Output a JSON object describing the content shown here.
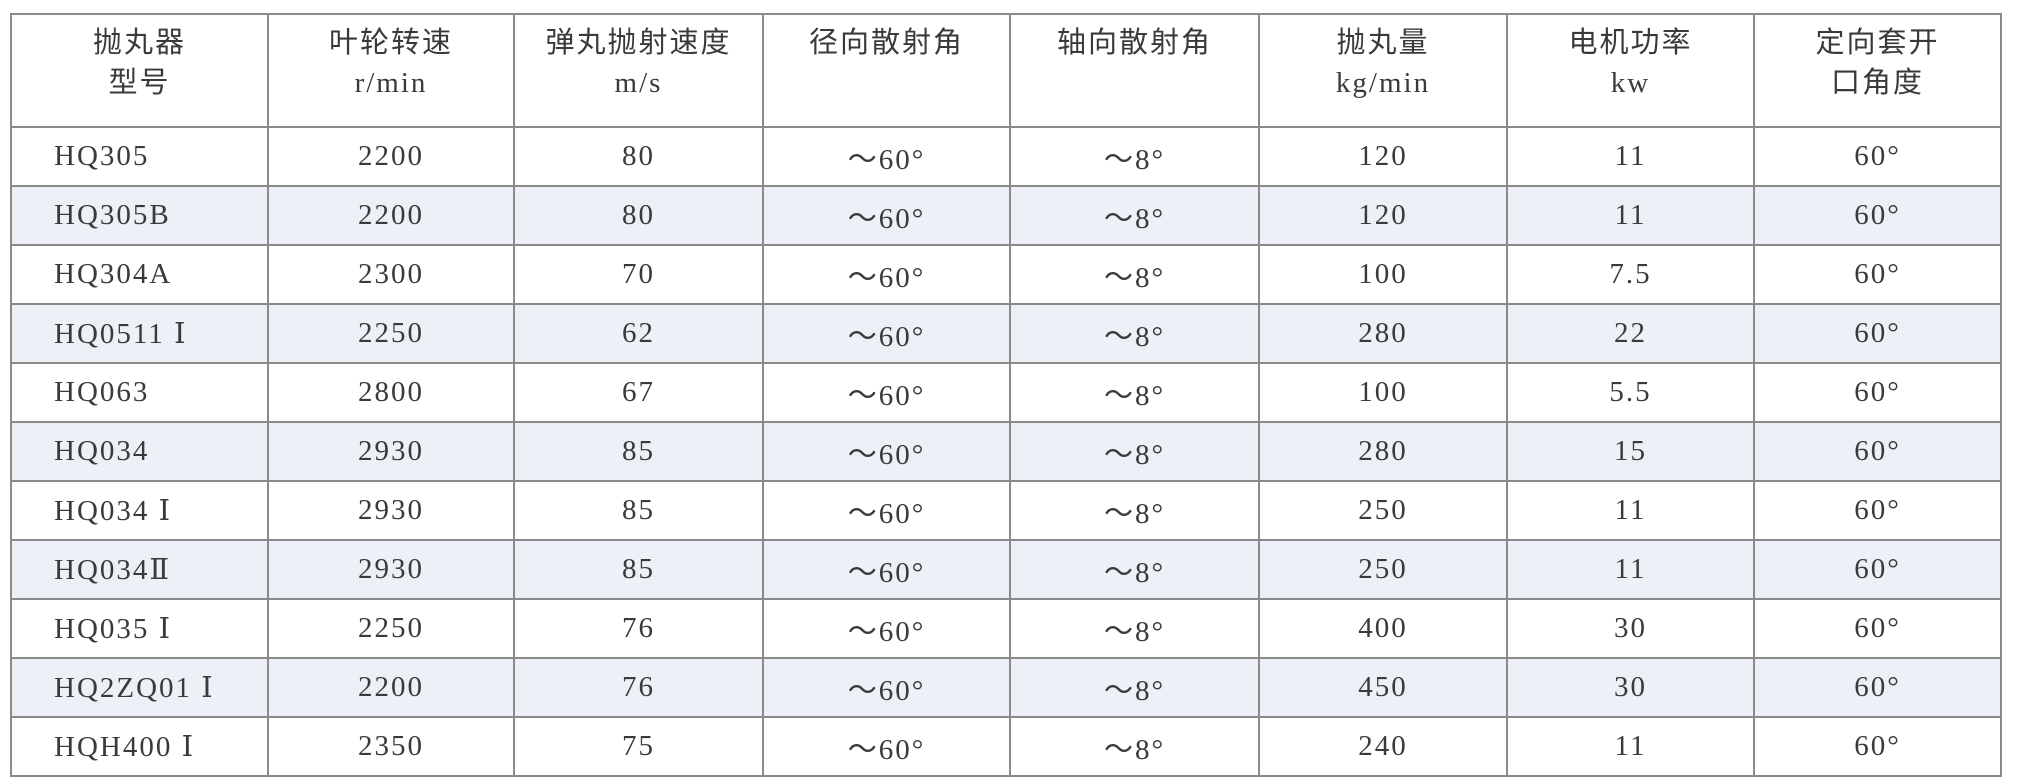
{
  "table": {
    "header": [
      [
        "抛丸器",
        "型号"
      ],
      [
        "叶轮转速",
        "r/min"
      ],
      [
        "弹丸抛射速度",
        "m/s"
      ],
      [
        "径向散射角"
      ],
      [
        "轴向散射角"
      ],
      [
        "抛丸量",
        "kg/min"
      ],
      [
        "电机功率",
        "kw"
      ],
      [
        "定向套开",
        "口角度"
      ]
    ],
    "rows": [
      [
        "HQ305",
        "2200",
        "80",
        "～60°",
        "～8°",
        "120",
        "11",
        "60°"
      ],
      [
        "HQ305B",
        "2200",
        "80",
        "～60°",
        "～8°",
        "120",
        "11",
        "60°"
      ],
      [
        "HQ304A",
        "2300",
        "70",
        "～60°",
        "～8°",
        "100",
        "7.5",
        "60°"
      ],
      [
        "HQ0511 Ⅰ",
        "2250",
        "62",
        "～60°",
        "～8°",
        "280",
        "22",
        "60°"
      ],
      [
        "HQ063",
        "2800",
        "67",
        "～60°",
        "～8°",
        "100",
        "5.5",
        "60°"
      ],
      [
        "HQ034",
        "2930",
        "85",
        "～60°",
        "～8°",
        "280",
        "15",
        "60°"
      ],
      [
        "HQ034 Ⅰ",
        "2930",
        "85",
        "～60°",
        "～8°",
        "250",
        "11",
        "60°"
      ],
      [
        "HQ034Ⅱ",
        "2930",
        "85",
        "～60°",
        "～8°",
        "250",
        "11",
        "60°"
      ],
      [
        "HQ035 Ⅰ",
        "2250",
        "76",
        "～60°",
        "～8°",
        "400",
        "30",
        "60°"
      ],
      [
        "HQ2ZQ01 Ⅰ",
        "2200",
        "76",
        "～60°",
        "～8°",
        "450",
        "30",
        "60°"
      ],
      [
        "HQH400 Ⅰ",
        "2350",
        "75",
        "～60°",
        "～8°",
        "240",
        "11",
        "60°"
      ]
    ]
  }
}
